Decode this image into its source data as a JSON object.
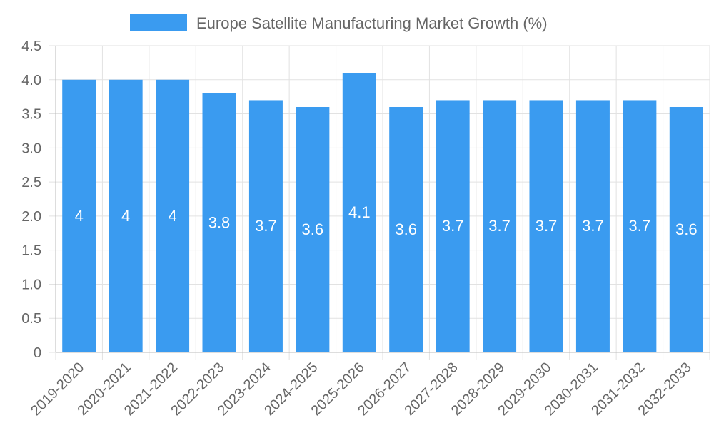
{
  "chart_data": {
    "type": "bar",
    "title": "",
    "xlabel": "",
    "ylabel": "",
    "legend": {
      "entries": [
        "Europe Satellite Manufacturing Market Growth (%)"
      ],
      "placement": "top-center"
    },
    "categories": [
      "2019-2020",
      "2020-2021",
      "2021-2022",
      "2022-2023",
      "2023-2024",
      "2024-2025",
      "2025-2026",
      "2026-2027",
      "2027-2028",
      "2028-2029",
      "2029-2030",
      "2030-2031",
      "2031-2032",
      "2032-2033"
    ],
    "series": [
      {
        "name": "Europe Satellite Manufacturing Market Growth (%)",
        "values": [
          4,
          4,
          4,
          3.8,
          3.7,
          3.6,
          4.1,
          3.6,
          3.7,
          3.7,
          3.7,
          3.7,
          3.7,
          3.6
        ],
        "labels": [
          "4",
          "4",
          "4",
          "3.8",
          "3.7",
          "3.6",
          "4.1",
          "3.6",
          "3.7",
          "3.7",
          "3.7",
          "3.7",
          "3.7",
          "3.6"
        ]
      }
    ],
    "ylim": [
      0,
      4.5
    ],
    "yticks": [
      "0",
      "0.5",
      "1.0",
      "1.5",
      "2.0",
      "2.5",
      "3.0",
      "3.5",
      "4.0",
      "4.5"
    ],
    "grid": true,
    "colors": {
      "bar": "#3a9bf0",
      "grid": "#e2e2e2",
      "text": "#666666",
      "label": "#ffffff"
    }
  }
}
